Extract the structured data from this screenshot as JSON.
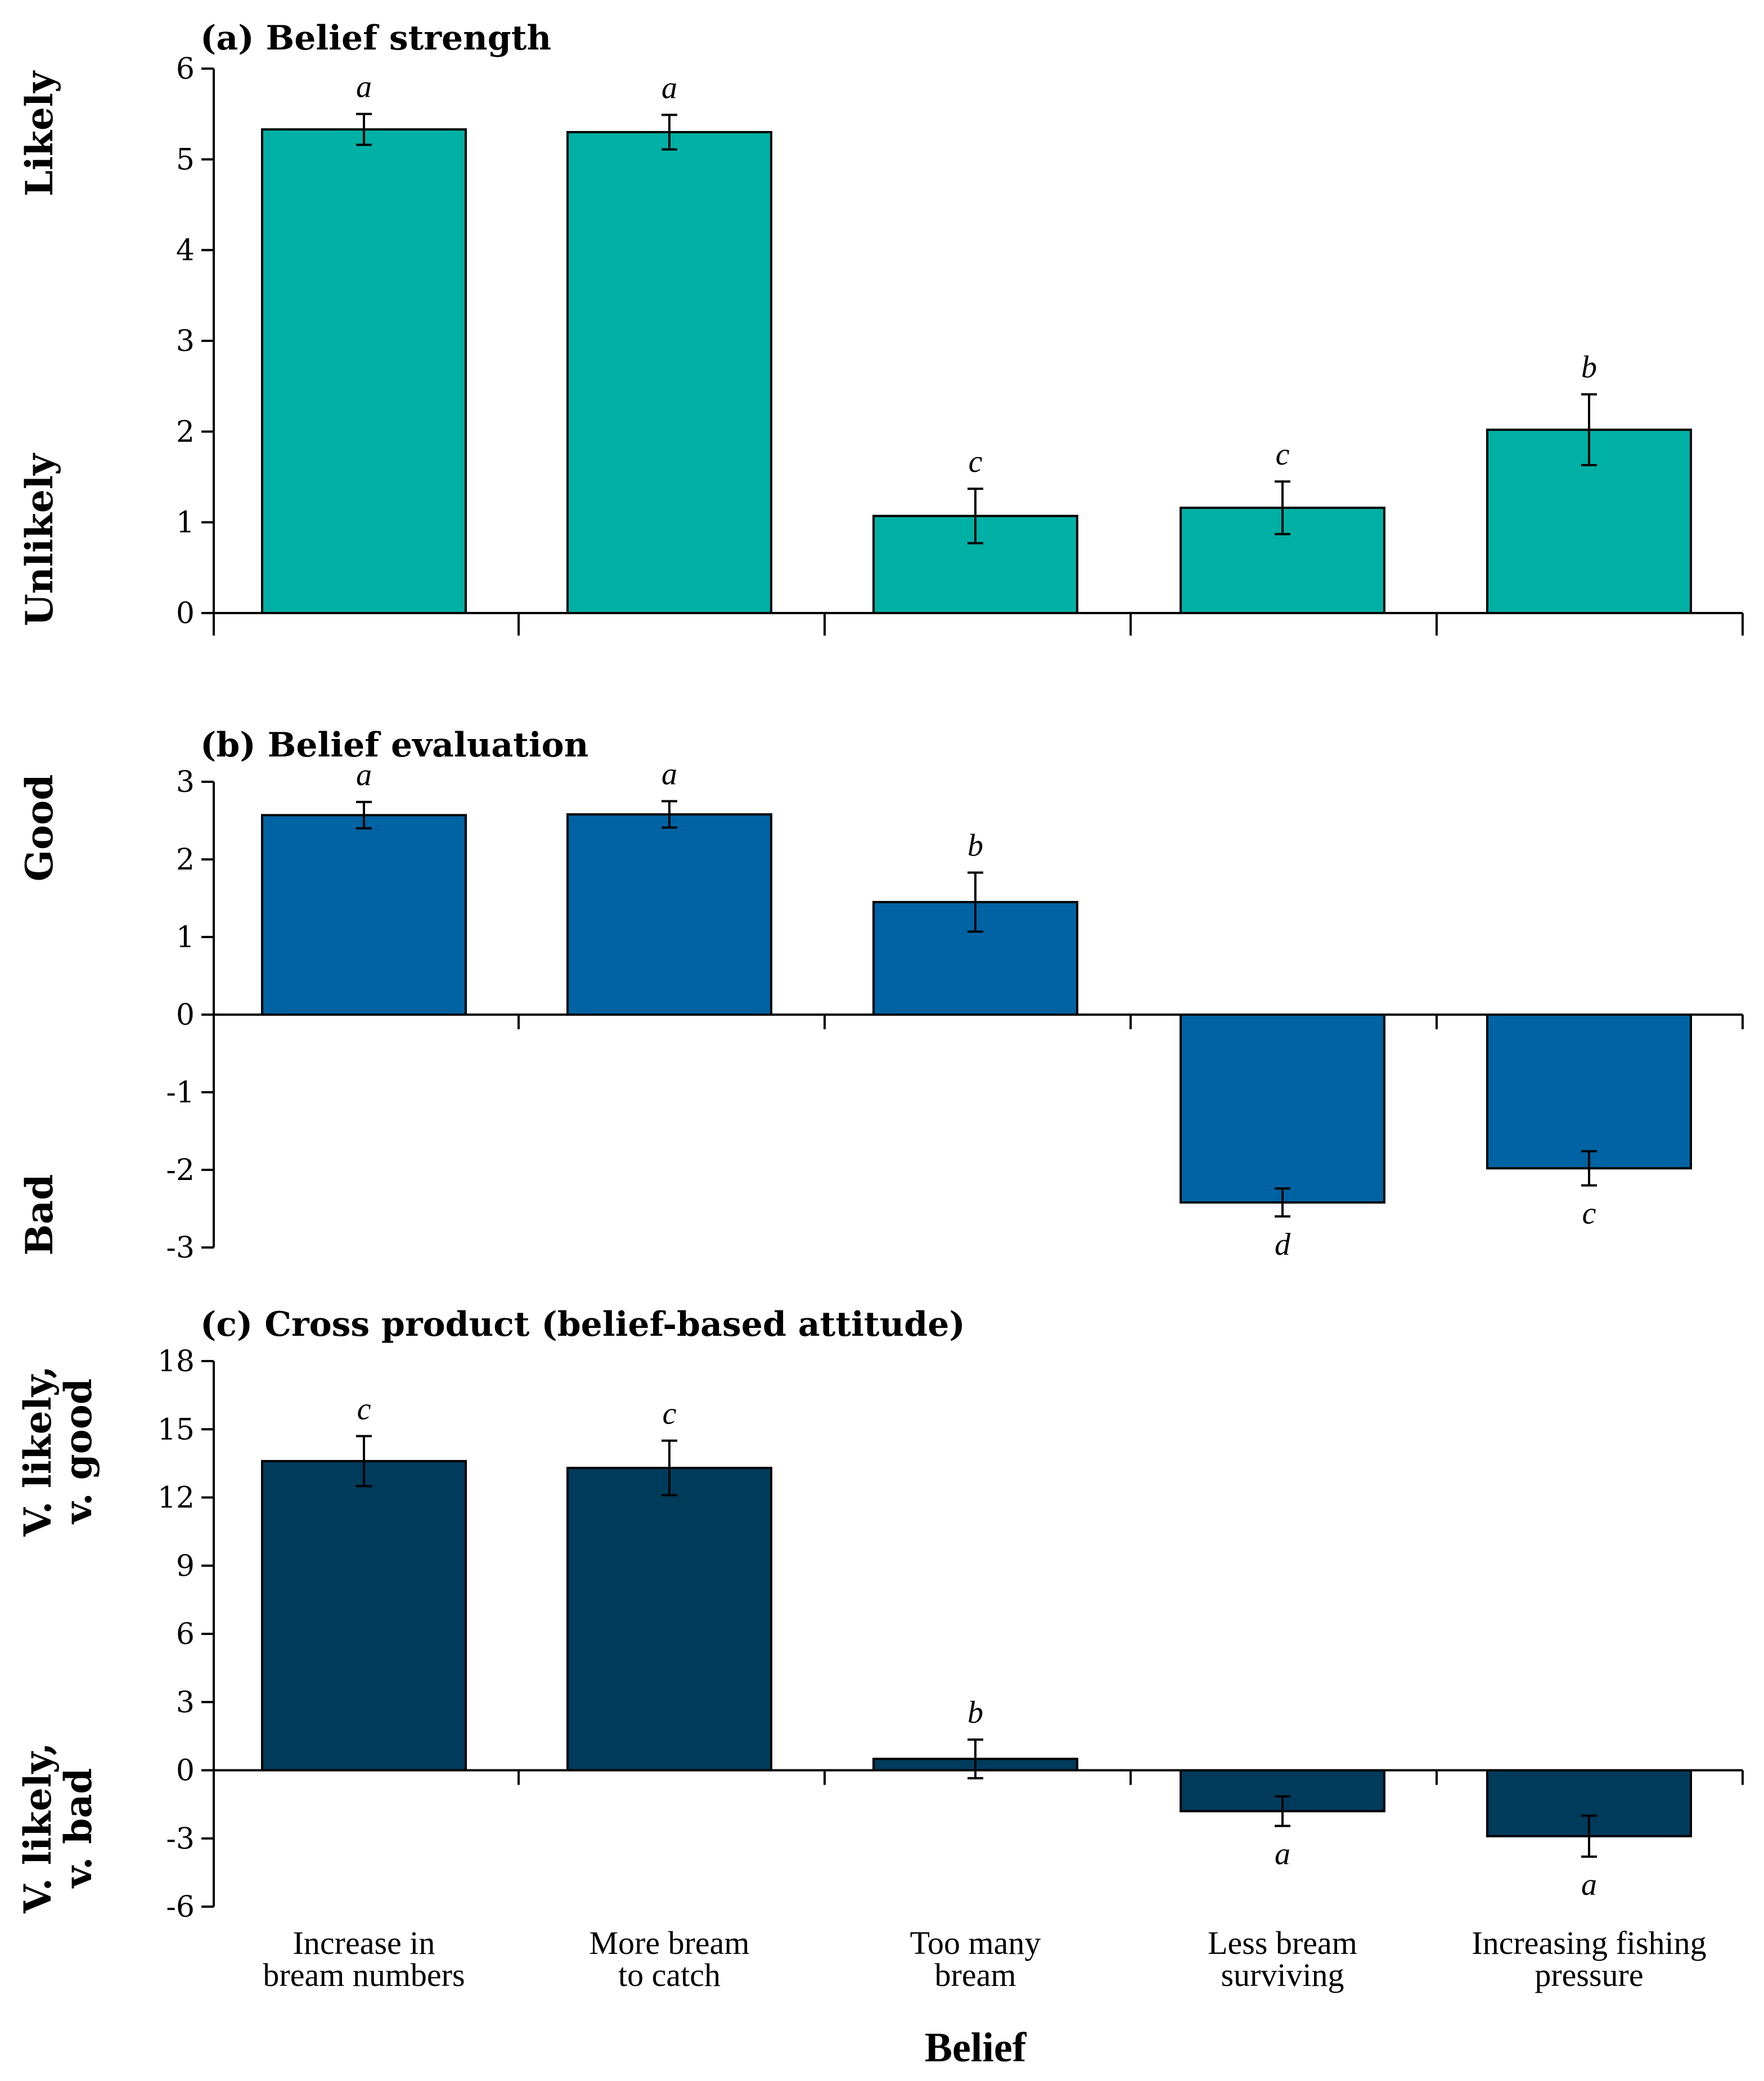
{
  "figure": {
    "xlabel": "Belief",
    "categories": [
      [
        "Increase in",
        "bream numbers"
      ],
      [
        "More bream",
        "to catch"
      ],
      [
        "Too many",
        "bream"
      ],
      [
        "Less bream",
        "surviving"
      ],
      [
        "Increasing fishing",
        "pressure"
      ]
    ]
  },
  "chart_data": [
    {
      "type": "bar",
      "title": "(a) Belief strength",
      "color": "#00b0a4",
      "categories": [
        "Increase in bream numbers",
        "More bream to catch",
        "Too many bream",
        "Less bream surviving",
        "Increasing fishing pressure"
      ],
      "values": [
        5.33,
        5.3,
        1.07,
        1.16,
        2.02
      ],
      "errors": [
        0.17,
        0.19,
        0.3,
        0.29,
        0.39
      ],
      "significance": [
        "a",
        "a",
        "c",
        "c",
        "b"
      ],
      "ylim": [
        0,
        6
      ],
      "yticks": [
        0,
        1,
        2,
        3,
        4,
        5,
        6
      ],
      "ylabel_top": "Likely",
      "ylabel_bottom": "Unlikely",
      "xlabel": ""
    },
    {
      "type": "bar",
      "title": "(b) Belief evaluation",
      "color": "#0063a3",
      "categories": [
        "Increase in bream numbers",
        "More bream to catch",
        "Too many bream",
        "Less bream surviving",
        "Increasing fishing pressure"
      ],
      "values": [
        2.57,
        2.58,
        1.45,
        -2.42,
        -1.98
      ],
      "errors": [
        0.17,
        0.17,
        0.38,
        0.18,
        0.22
      ],
      "significance": [
        "a",
        "a",
        "b",
        "d",
        "c"
      ],
      "ylim": [
        -3,
        3
      ],
      "yticks": [
        -3,
        -2,
        -1,
        0,
        1,
        2,
        3
      ],
      "ylabel_top": "Good",
      "ylabel_bottom": "Bad",
      "xlabel": ""
    },
    {
      "type": "bar",
      "title": "(c) Cross product (belief-based attitude)",
      "color": "#003b5c",
      "categories": [
        "Increase in bream numbers",
        "More bream to catch",
        "Too many bream",
        "Less bream surviving",
        "Increasing fishing pressure"
      ],
      "values": [
        13.6,
        13.3,
        0.5,
        -1.8,
        -2.9
      ],
      "errors": [
        1.1,
        1.2,
        0.85,
        0.65,
        0.9
      ],
      "significance": [
        "c",
        "c",
        "b",
        "a",
        "a"
      ],
      "ylim": [
        -6,
        18
      ],
      "yticks": [
        -6,
        -3,
        0,
        3,
        6,
        9,
        12,
        15,
        18
      ],
      "ylabel_top": [
        "V. likely,",
        "v. good"
      ],
      "ylabel_bottom": [
        "V. likely,",
        "v. bad"
      ],
      "xlabel": "Belief"
    }
  ]
}
